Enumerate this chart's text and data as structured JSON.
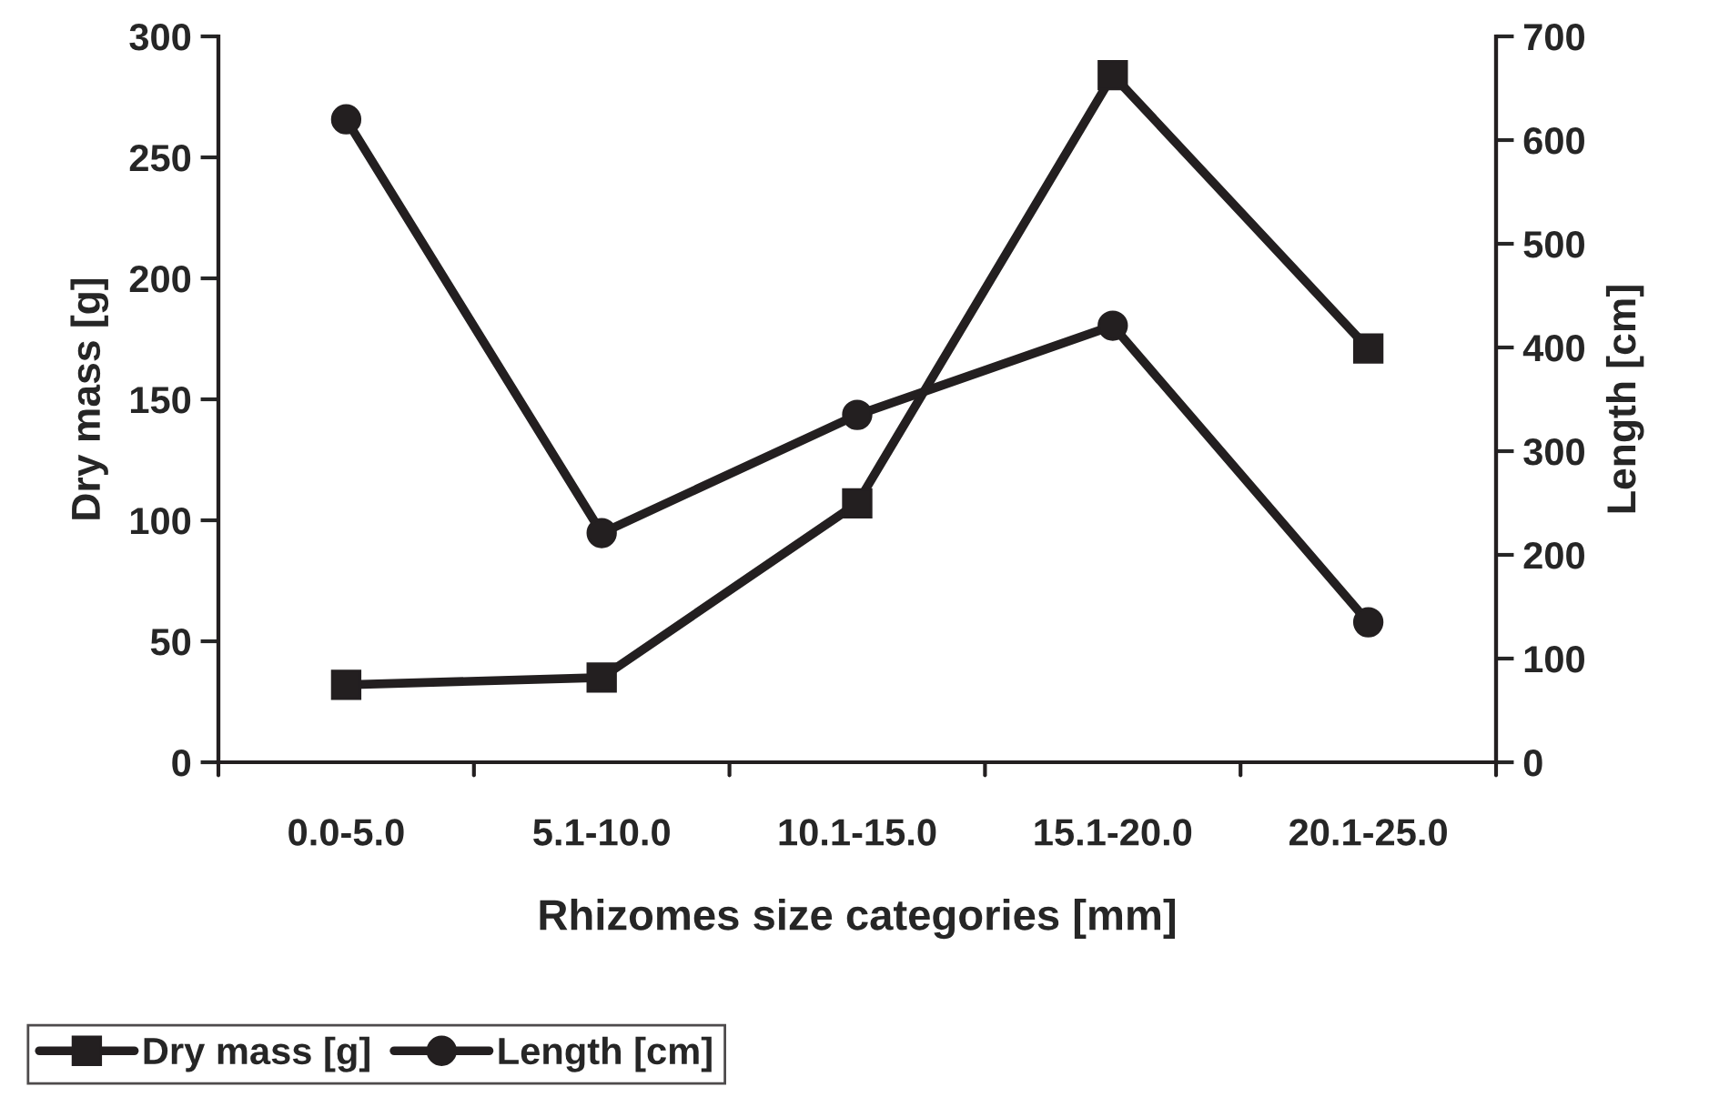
{
  "chart_data": {
    "type": "line",
    "xlabel": "Rhizomes size categories [mm]",
    "ylabel": "Dry mass [g]",
    "y2label": "Length [cm]",
    "categories": [
      "0.0-5.0",
      "5.1-10.0",
      "10.1-15.0",
      "15.1-20.0",
      "20.1-25.0"
    ],
    "series": [
      {
        "name": "Dry mass [g]",
        "color": "#231f20",
        "marker": "square",
        "values": [
          32,
          35,
          107,
          284,
          171
        ]
      },
      {
        "name": "Length [cm]",
        "color": "#231f20",
        "marker": "circle",
        "axis": "y2",
        "values": [
          620,
          221,
          335,
          421,
          135
        ]
      }
    ],
    "ylim": [
      0,
      300
    ],
    "yticks": [
      0,
      50,
      100,
      150,
      200,
      250,
      300
    ],
    "y2lim": [
      0,
      700
    ],
    "y2ticks": [
      0,
      100,
      200,
      300,
      400,
      500,
      600,
      700
    ],
    "grid": false,
    "legend": "bottom left",
    "line_style": "solid"
  }
}
